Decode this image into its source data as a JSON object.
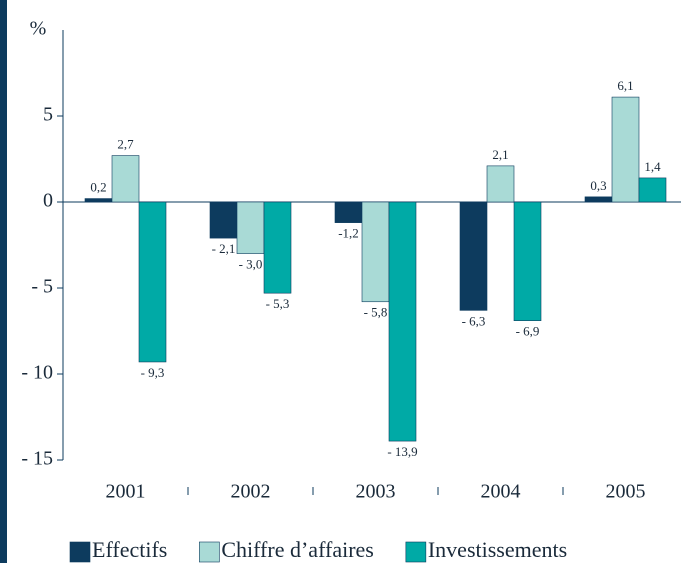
{
  "chart_data": {
    "type": "bar",
    "ylabel": "%",
    "categories": [
      "2001",
      "2002",
      "2003",
      "2004",
      "2005"
    ],
    "series": [
      {
        "name": "Effectifs",
        "color": "#0d3b5e",
        "values": [
          0.2,
          -2.1,
          -1.2,
          -6.3,
          0.3
        ],
        "value_labels": [
          "0,2",
          "- 2,1",
          "-1,2",
          "- 6,3",
          "0,3"
        ]
      },
      {
        "name": "Chiffre d’affaires",
        "color": "#a9dad6",
        "values": [
          2.7,
          -3.0,
          -5.8,
          2.1,
          6.1
        ],
        "value_labels": [
          "2,7",
          "- 3,0",
          "- 5,8",
          "2,1",
          "6,1"
        ]
      },
      {
        "name": "Investissements",
        "color": "#00aaa6",
        "values": [
          -9.3,
          -5.3,
          -13.9,
          -6.9,
          1.4
        ],
        "value_labels": [
          "- 9,3",
          "- 5,3",
          "- 13,9",
          "- 6,9",
          "1,4"
        ]
      }
    ],
    "ylim": [
      -15,
      10
    ],
    "yticks": [
      {
        "value": -15,
        "label": "- 15"
      },
      {
        "value": -10,
        "label": "- 10"
      },
      {
        "value": -5,
        "label": "- 5"
      },
      0,
      5
    ]
  }
}
